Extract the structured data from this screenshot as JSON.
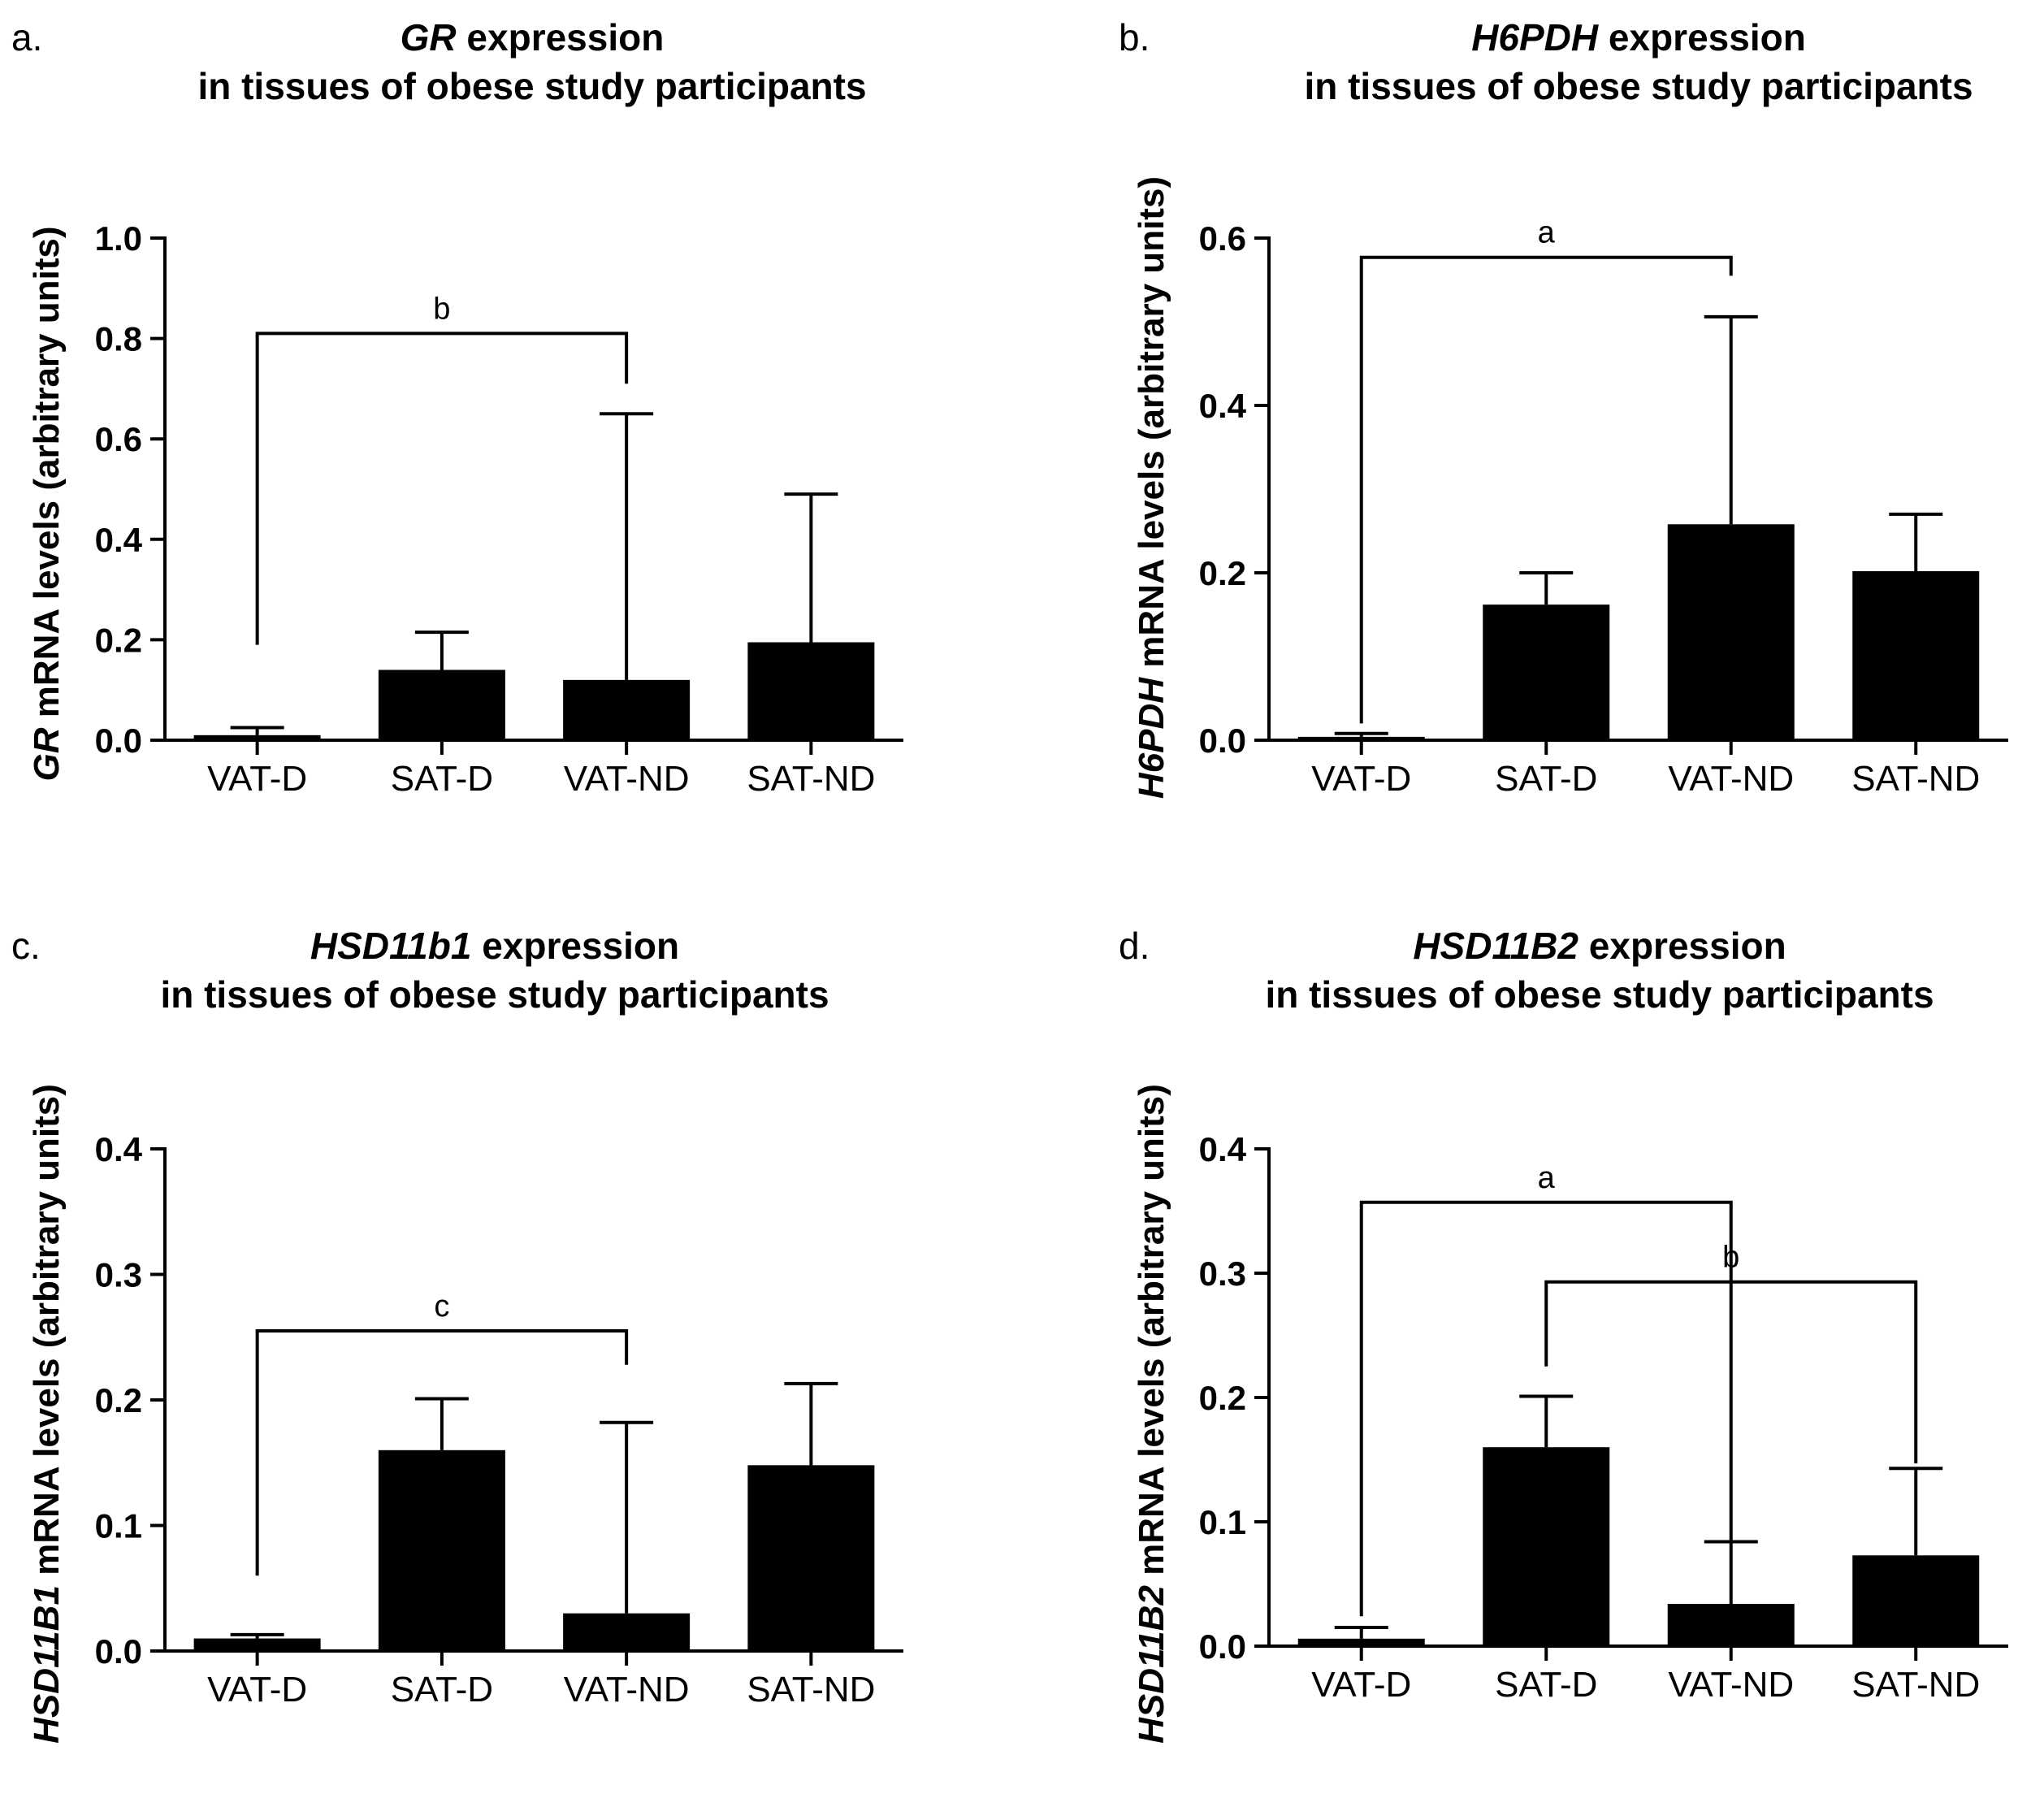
{
  "chart_data": [
    {
      "panel_label": "a.",
      "type": "bar",
      "title_gene": "GR",
      "title_rest": " expression",
      "title_line2": "in tissues of obese study participants",
      "ylabel_gene": "GR",
      "ylabel_rest": " mRNA levels (arbitrary units)",
      "categories": [
        "VAT-D",
        "SAT-D",
        "VAT-ND",
        "SAT-ND"
      ],
      "values": [
        0.01,
        0.14,
        0.12,
        0.195
      ],
      "errors": [
        0.015,
        0.075,
        0.53,
        0.295
      ],
      "ylim": [
        0,
        1.0
      ],
      "yticks": [
        "0.0",
        "0.2",
        "0.4",
        "0.6",
        "0.8",
        "1.0"
      ],
      "ytick_values": [
        0,
        0.2,
        0.4,
        0.6,
        0.8,
        1.0
      ],
      "bar_color": "#000000",
      "annotations": [
        {
          "label": "b",
          "from": 0,
          "to": 2,
          "y": 0.81,
          "drop_from": 0.19,
          "drop_to": 0.71
        }
      ]
    },
    {
      "panel_label": "b.",
      "type": "bar",
      "title_gene": "H6PDH",
      "title_rest": " expression",
      "title_line2": "in tissues of obese study participants",
      "ylabel_gene": "H6PDH",
      "ylabel_rest": " mRNA levels (arbitrary units)",
      "categories": [
        "VAT-D",
        "SAT-D",
        "VAT-ND",
        "SAT-ND"
      ],
      "values": [
        0.004,
        0.162,
        0.258,
        0.202
      ],
      "errors": [
        0.004,
        0.038,
        0.248,
        0.068
      ],
      "ylim": [
        0,
        0.6
      ],
      "yticks": [
        "0.0",
        "0.2",
        "0.4",
        "0.6"
      ],
      "ytick_values": [
        0,
        0.2,
        0.4,
        0.6
      ],
      "bar_color": "#000000",
      "annotations": [
        {
          "label": "a",
          "from": 0,
          "to": 2,
          "y": 0.577,
          "drop_from": 0.02,
          "drop_to": 0.555
        }
      ]
    },
    {
      "panel_label": "c.",
      "type": "bar",
      "title_gene": "HSD11b1",
      "title_rest": " expression",
      "title_line2": "in tissues of obese study participants",
      "ylabel_gene": "HSD11B1",
      "ylabel_rest": " mRNA levels (arbitrary units)",
      "categories": [
        "VAT-D",
        "SAT-D",
        "VAT-ND",
        "SAT-ND"
      ],
      "values": [
        0.01,
        0.16,
        0.03,
        0.148
      ],
      "errors": [
        0.003,
        0.041,
        0.152,
        0.065
      ],
      "ylim": [
        0,
        0.4
      ],
      "yticks": [
        "0.0",
        "0.1",
        "0.2",
        "0.3",
        "0.4"
      ],
      "ytick_values": [
        0,
        0.1,
        0.2,
        0.3,
        0.4
      ],
      "bar_color": "#000000",
      "annotations": [
        {
          "label": "c",
          "from": 0,
          "to": 2,
          "y": 0.255,
          "drop_from": 0.06,
          "drop_to": 0.228
        }
      ]
    },
    {
      "panel_label": "d.",
      "type": "bar",
      "title_gene": "HSD11B2",
      "title_rest": " expression",
      "title_line2": "in tissues of obese study participants",
      "ylabel_gene": "HSD11B2",
      "ylabel_rest": " mRNA levels (arbitrary units)",
      "categories": [
        "VAT-D",
        "SAT-D",
        "VAT-ND",
        "SAT-ND"
      ],
      "values": [
        0.006,
        0.16,
        0.034,
        0.073
      ],
      "errors": [
        0.009,
        0.041,
        0.05,
        0.07
      ],
      "ylim": [
        0,
        0.4
      ],
      "yticks": [
        "0.0",
        "0.1",
        "0.2",
        "0.3",
        "0.4"
      ],
      "ytick_values": [
        0,
        0.1,
        0.2,
        0.3,
        0.4
      ],
      "bar_color": "#000000",
      "annotations": [
        {
          "label": "a",
          "from": 0,
          "to": 2,
          "y": 0.357,
          "drop_from": 0.024,
          "drop_to": 0.085
        },
        {
          "label": "b",
          "from": 1,
          "to": 3,
          "y": 0.293,
          "drop_from": 0.225,
          "drop_to": 0.147
        }
      ]
    }
  ]
}
